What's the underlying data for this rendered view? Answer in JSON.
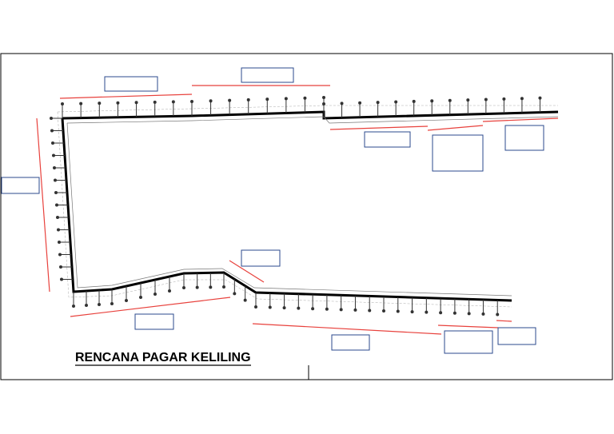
{
  "drawing": {
    "title": "RENCANA PAGAR KELILING"
  },
  "colors": {
    "fence": "#000000",
    "dimension": "#e8413c",
    "label_box": "#2b4a8c",
    "frame": "#000000",
    "post_marker": "#444444"
  },
  "label_boxes_count_note": ""
}
